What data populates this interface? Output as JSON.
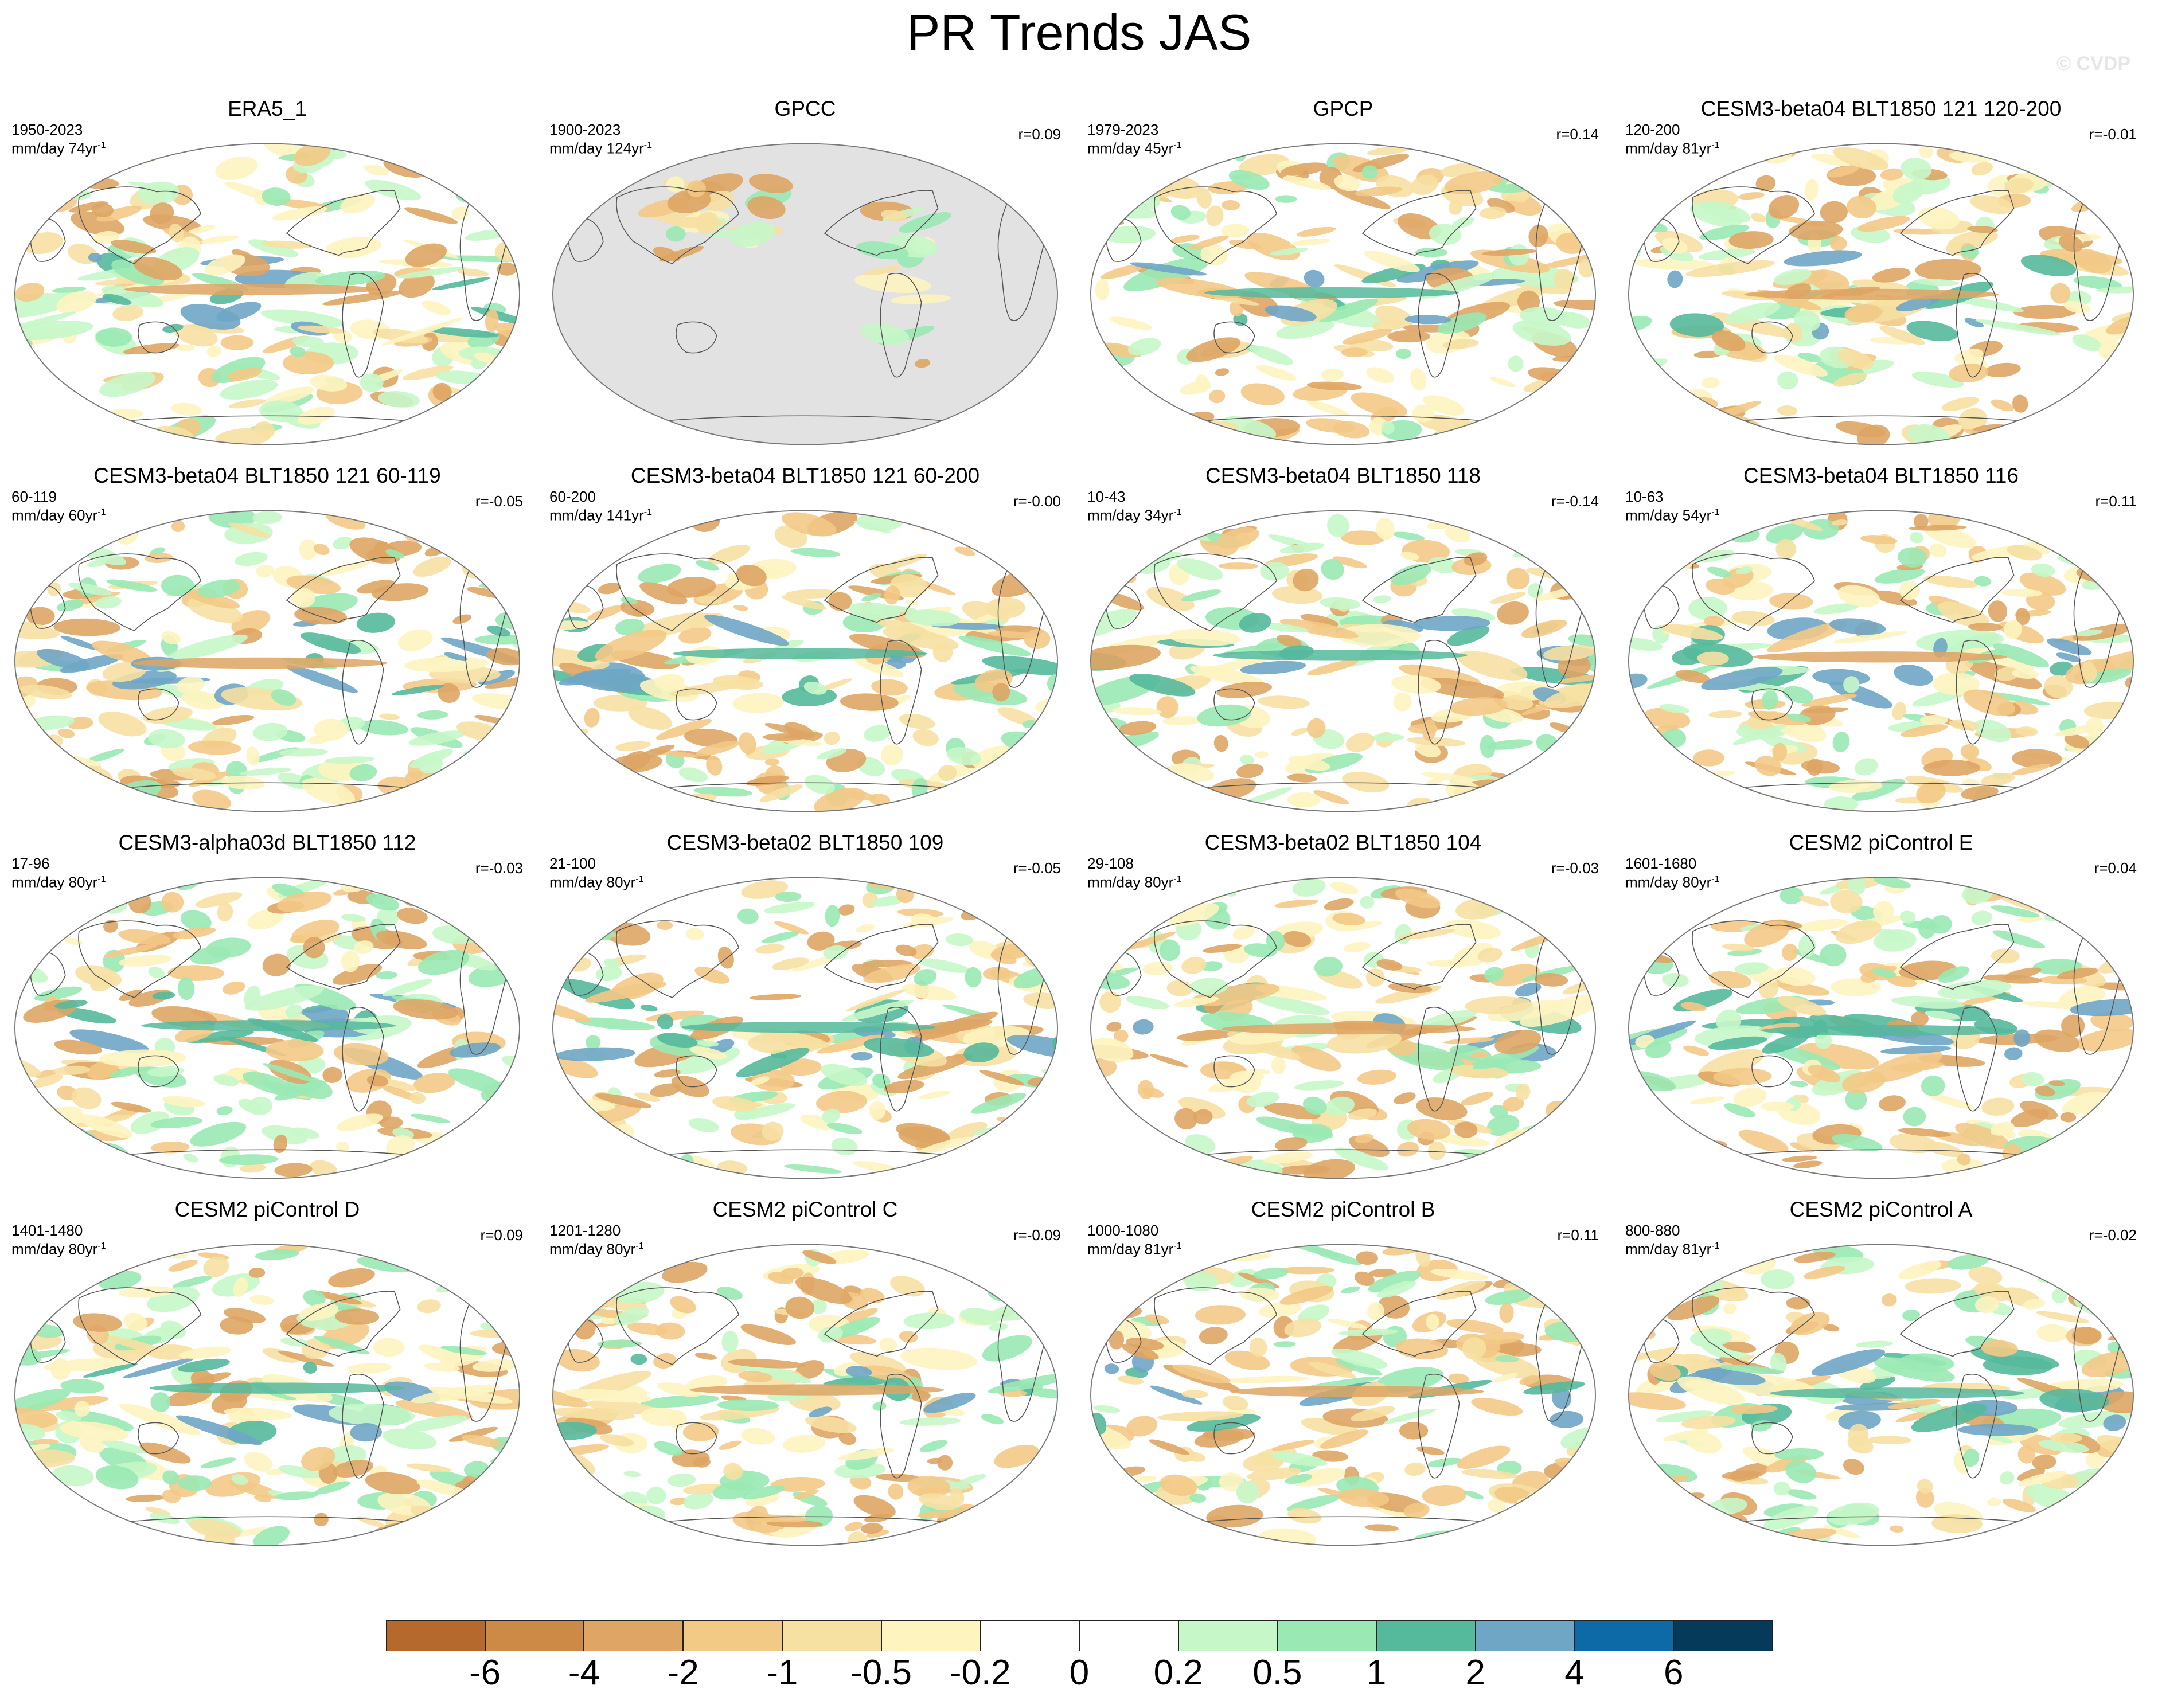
{
  "title": "PR Trends JAS",
  "watermark": "© CVDP",
  "panels": [
    {
      "title": "ERA5_1",
      "period": "1950-2023",
      "units": "mm/day 74yr",
      "units_exp": "-1",
      "r": "",
      "missing": "none"
    },
    {
      "title": "GPCC",
      "period": "1900-2023",
      "units": "mm/day 124yr",
      "units_exp": "-1",
      "r": "r=0.09",
      "missing": "ocean"
    },
    {
      "title": "GPCP",
      "period": "1979-2023",
      "units": "mm/day 45yr",
      "units_exp": "-1",
      "r": "r=0.14",
      "missing": "none"
    },
    {
      "title": "CESM3-beta04 BLT1850 121 120-200",
      "period": "120-200",
      "units": "mm/day 81yr",
      "units_exp": "-1",
      "r": "r=-0.01",
      "missing": "none"
    },
    {
      "title": "CESM3-beta04 BLT1850 121 60-119",
      "period": "60-119",
      "units": "mm/day 60yr",
      "units_exp": "-1",
      "r": "r=-0.05",
      "missing": "none"
    },
    {
      "title": "CESM3-beta04 BLT1850 121 60-200",
      "period": "60-200",
      "units": "mm/day 141yr",
      "units_exp": "-1",
      "r": "r=-0.00",
      "missing": "none"
    },
    {
      "title": "CESM3-beta04 BLT1850 118",
      "period": "10-43",
      "units": "mm/day 34yr",
      "units_exp": "-1",
      "r": "r=-0.14",
      "missing": "none"
    },
    {
      "title": "CESM3-beta04 BLT1850 116",
      "period": "10-63",
      "units": "mm/day 54yr",
      "units_exp": "-1",
      "r": "r=0.11",
      "missing": "none"
    },
    {
      "title": "CESM3-alpha03d BLT1850 112",
      "period": "17-96",
      "units": "mm/day 80yr",
      "units_exp": "-1",
      "r": "r=-0.03",
      "missing": "none"
    },
    {
      "title": "CESM3-beta02 BLT1850 109",
      "period": "21-100",
      "units": "mm/day 80yr",
      "units_exp": "-1",
      "r": "r=-0.05",
      "missing": "none"
    },
    {
      "title": "CESM3-beta02 BLT1850 104",
      "period": "29-108",
      "units": "mm/day 80yr",
      "units_exp": "-1",
      "r": "r=-0.03",
      "missing": "none"
    },
    {
      "title": "CESM2 piControl E",
      "period": "1601-1680",
      "units": "mm/day 80yr",
      "units_exp": "-1",
      "r": "r=0.04",
      "missing": "none"
    },
    {
      "title": "CESM2 piControl D",
      "period": "1401-1480",
      "units": "mm/day 80yr",
      "units_exp": "-1",
      "r": "r=0.09",
      "missing": "none"
    },
    {
      "title": "CESM2 piControl C",
      "period": "1201-1280",
      "units": "mm/day 80yr",
      "units_exp": "-1",
      "r": "r=-0.09",
      "missing": "none"
    },
    {
      "title": "CESM2 piControl B",
      "period": "1000-1080",
      "units": "mm/day 81yr",
      "units_exp": "-1",
      "r": "r=0.11",
      "missing": "none"
    },
    {
      "title": "CESM2 piControl A",
      "period": "800-880",
      "units": "mm/day 81yr",
      "units_exp": "-1",
      "r": "r=-0.02",
      "missing": "none"
    }
  ],
  "colorbar": {
    "labels": [
      "-6",
      "-4",
      "-2",
      "-1",
      "-0.5",
      "-0.2",
      "0",
      "0.2",
      "0.5",
      "1",
      "2",
      "4",
      "6"
    ],
    "colors": [
      "#b5692c",
      "#cd8a46",
      "#dea564",
      "#f3c986",
      "#f6e0a2",
      "#fdf4c0",
      "#ffffff",
      "#ffffff",
      "#c6f7c9",
      "#9ae9b4",
      "#55b99c",
      "#6fa6c6",
      "#0d6aa7",
      "#053a5a"
    ]
  }
}
